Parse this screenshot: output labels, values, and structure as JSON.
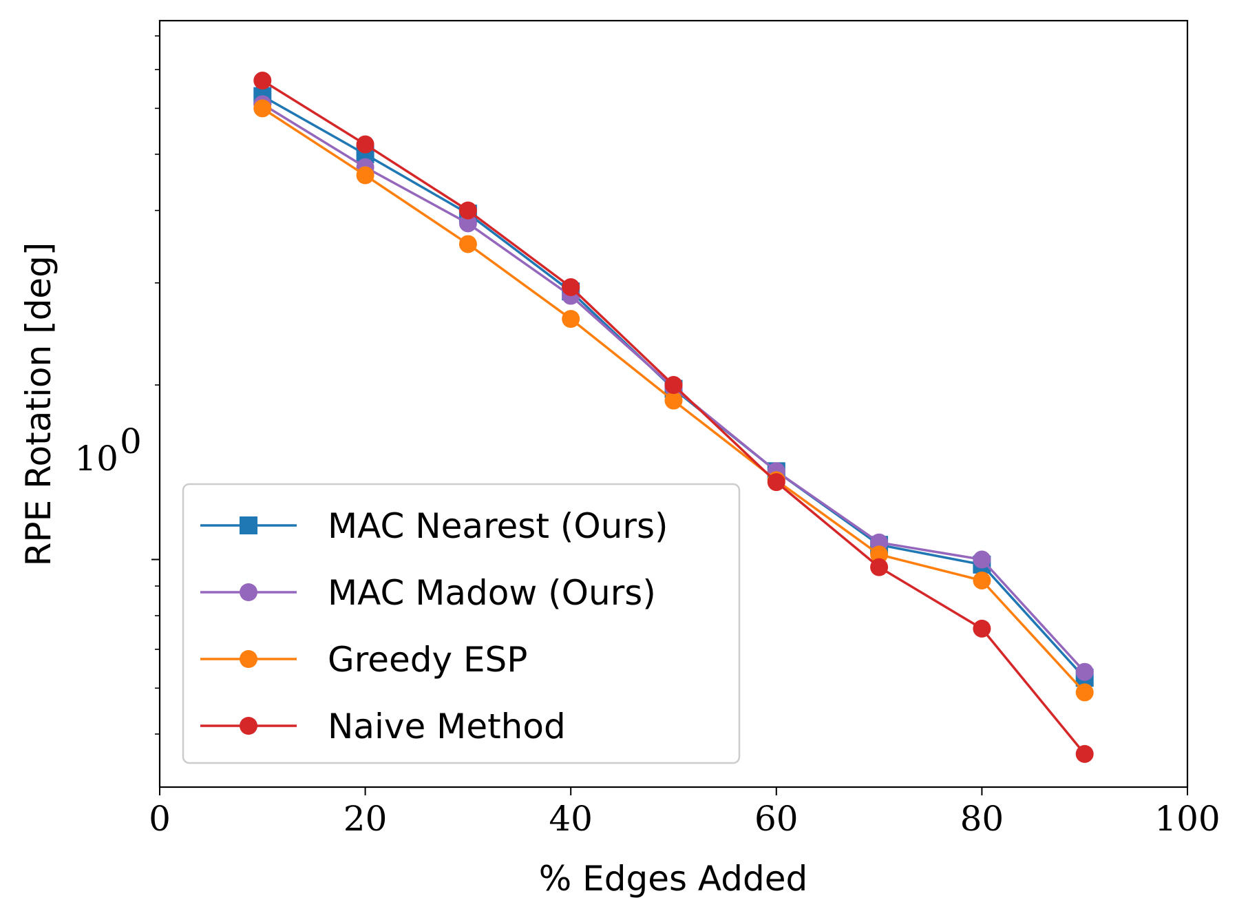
{
  "chart_data": {
    "type": "line",
    "title": "",
    "xlabel": "% Edges Added",
    "ylabel": "RPE Rotation [deg]",
    "xlim": [
      0,
      100
    ],
    "ylim": [
      0.405,
      8.5
    ],
    "yscale": "log",
    "xticks": [
      0,
      20,
      40,
      60,
      80,
      100
    ],
    "xtick_labels": [
      "0",
      "20",
      "40",
      "60",
      "80",
      "100"
    ],
    "ytick_label": {
      "base": "10",
      "exponent": "0",
      "value": 1.0
    },
    "y_minor_ticks": [
      0.5,
      0.6,
      0.7,
      0.8,
      0.9,
      2,
      3,
      4,
      5,
      6,
      7,
      8
    ],
    "grid": false,
    "legend_position": "lower-left",
    "x": [
      10,
      20,
      30,
      40,
      50,
      60,
      70,
      80,
      90
    ],
    "series": [
      {
        "name": "MAC Nearest (Ours)",
        "color": "#1f77b4",
        "marker": "square",
        "values": [
          6.3,
          5.0,
          3.95,
          2.9,
          1.97,
          1.42,
          1.06,
          0.98,
          0.625
        ]
      },
      {
        "name": "MAC Madow (Ours)",
        "color": "#9467bd",
        "marker": "circle",
        "values": [
          6.1,
          4.75,
          3.8,
          2.85,
          1.98,
          1.42,
          1.07,
          1.0,
          0.64
        ]
      },
      {
        "name": "Greedy ESP",
        "color": "#ff7f0e",
        "marker": "circle",
        "values": [
          6.0,
          4.6,
          3.5,
          2.6,
          1.88,
          1.37,
          1.02,
          0.92,
          0.59
        ]
      },
      {
        "name": "Naive Method",
        "color": "#d62728",
        "marker": "circle",
        "values": [
          6.7,
          5.2,
          4.0,
          2.95,
          2.0,
          1.36,
          0.97,
          0.76,
          0.462
        ]
      }
    ]
  }
}
